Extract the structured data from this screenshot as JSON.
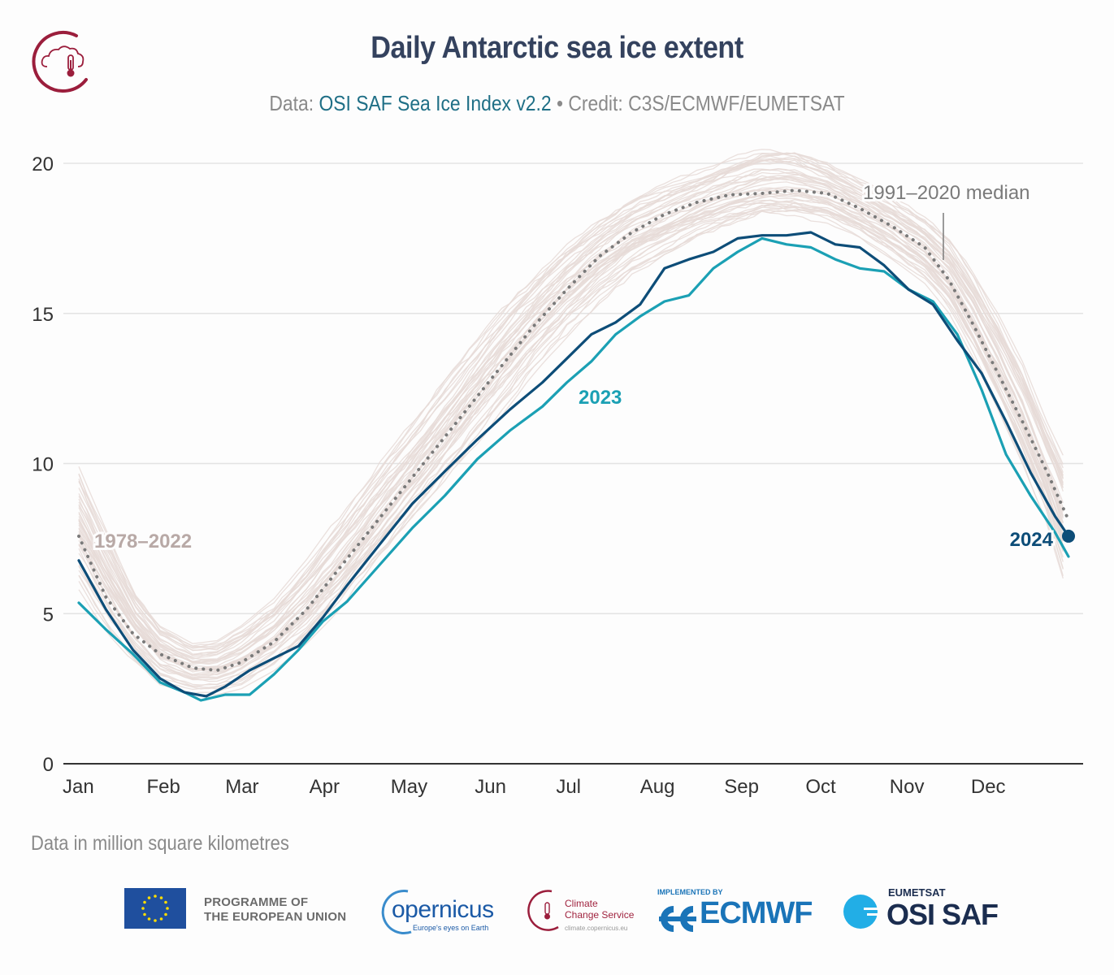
{
  "header": {
    "title": "Daily Antarctic sea ice extent",
    "subtitle_prefix": "Data: ",
    "subtitle_source": "OSI SAF Sea Ice Index v2.2",
    "subtitle_credit": " • Credit: C3S/ECMWF/EUMETSAT"
  },
  "footer": {
    "note": "Data in million square kilometres",
    "logos": {
      "eu_line1": "PROGRAMME OF",
      "eu_line2": "THE EUROPEAN UNION",
      "copernicus_word": "opernicus",
      "copernicus_tagline": "Europe's eyes on Earth",
      "c3s_line1": "Climate",
      "c3s_line2": "Change Service",
      "c3s_url": "climate.copernicus.eu",
      "ecmwf_implemented": "IMPLEMENTED BY",
      "ecmwf_word": "ECMWF",
      "osi_top": "EUMETSAT",
      "osi_word": "OSI SAF"
    }
  },
  "colors": {
    "title": "#34425e",
    "source_link": "#1f6f86",
    "series_2024": "#0d4d78",
    "series_2023": "#1ba0b4",
    "median": "#7a7a7a",
    "historical": "#e6dad7",
    "historical_label": "#b8a9a6",
    "logo_maroon": "#9b1e3c"
  },
  "chart_data": {
    "type": "line",
    "title": "Daily Antarctic sea ice extent",
    "xlabel": "",
    "ylabel": "",
    "unit": "million square kilometres",
    "xlim_days": [
      1,
      366
    ],
    "ylim": [
      0,
      20
    ],
    "yticks": [
      0,
      5,
      10,
      15,
      20
    ],
    "grid": true,
    "xticks": [
      {
        "label": "Jan",
        "day": 1
      },
      {
        "label": "Feb",
        "day": 32
      },
      {
        "label": "Mar",
        "day": 61
      },
      {
        "label": "Apr",
        "day": 92
      },
      {
        "label": "May",
        "day": 122
      },
      {
        "label": "Jun",
        "day": 153
      },
      {
        "label": "Jul",
        "day": 183
      },
      {
        "label": "Aug",
        "day": 214
      },
      {
        "label": "Sep",
        "day": 245
      },
      {
        "label": "Oct",
        "day": 275
      },
      {
        "label": "Nov",
        "day": 306
      },
      {
        "label": "Dec",
        "day": 336
      }
    ],
    "series": [
      {
        "name": "2024",
        "label": "2024",
        "color": "#0d4d78",
        "end_marker": true,
        "points": [
          [
            1,
            6.77
          ],
          [
            11,
            5.14
          ],
          [
            21,
            3.79
          ],
          [
            31,
            2.84
          ],
          [
            40,
            2.38
          ],
          [
            48,
            2.25
          ],
          [
            55,
            2.57
          ],
          [
            64,
            3.11
          ],
          [
            73,
            3.52
          ],
          [
            82,
            3.92
          ],
          [
            91,
            4.87
          ],
          [
            100,
            5.95
          ],
          [
            112,
            7.31
          ],
          [
            124,
            8.66
          ],
          [
            136,
            9.74
          ],
          [
            148,
            10.8
          ],
          [
            160,
            11.8
          ],
          [
            172,
            12.7
          ],
          [
            181,
            13.5
          ],
          [
            190,
            14.3
          ],
          [
            199,
            14.7
          ],
          [
            208,
            15.3
          ],
          [
            217,
            16.5
          ],
          [
            226,
            16.8
          ],
          [
            235,
            17.05
          ],
          [
            244,
            17.5
          ],
          [
            253,
            17.6
          ],
          [
            262,
            17.6
          ],
          [
            271,
            17.7
          ],
          [
            280,
            17.3
          ],
          [
            289,
            17.2
          ],
          [
            298,
            16.6
          ],
          [
            307,
            15.8
          ],
          [
            316,
            15.3
          ],
          [
            325,
            14.1
          ],
          [
            334,
            13.0
          ],
          [
            343,
            11.4
          ],
          [
            352,
            9.7
          ],
          [
            361,
            8.25
          ],
          [
            366,
            7.58
          ]
        ]
      },
      {
        "name": "2023",
        "label": "2023",
        "color": "#1ba0b4",
        "points": [
          [
            1,
            5.36
          ],
          [
            11,
            4.47
          ],
          [
            21,
            3.65
          ],
          [
            31,
            2.71
          ],
          [
            40,
            2.38
          ],
          [
            46,
            2.11
          ],
          [
            55,
            2.3
          ],
          [
            64,
            2.3
          ],
          [
            73,
            2.98
          ],
          [
            82,
            3.79
          ],
          [
            91,
            4.74
          ],
          [
            100,
            5.41
          ],
          [
            112,
            6.63
          ],
          [
            124,
            7.85
          ],
          [
            136,
            8.93
          ],
          [
            148,
            10.15
          ],
          [
            160,
            11.1
          ],
          [
            172,
            11.9
          ],
          [
            181,
            12.7
          ],
          [
            190,
            13.4
          ],
          [
            199,
            14.3
          ],
          [
            208,
            14.9
          ],
          [
            217,
            15.4
          ],
          [
            226,
            15.6
          ],
          [
            235,
            16.5
          ],
          [
            244,
            17.05
          ],
          [
            253,
            17.5
          ],
          [
            262,
            17.3
          ],
          [
            271,
            17.2
          ],
          [
            280,
            16.8
          ],
          [
            289,
            16.5
          ],
          [
            298,
            16.4
          ],
          [
            307,
            15.8
          ],
          [
            316,
            15.4
          ],
          [
            325,
            14.3
          ],
          [
            334,
            12.45
          ],
          [
            343,
            10.3
          ],
          [
            352,
            8.93
          ],
          [
            361,
            7.71
          ],
          [
            366,
            6.9
          ]
        ]
      },
      {
        "name": "1991–2020 median",
        "label": "1991–2020 median",
        "color": "#7a7a7a",
        "style": "dotted",
        "points": [
          [
            1,
            7.58
          ],
          [
            11,
            5.55
          ],
          [
            21,
            4.33
          ],
          [
            31,
            3.65
          ],
          [
            43,
            3.19
          ],
          [
            52,
            3.11
          ],
          [
            61,
            3.38
          ],
          [
            73,
            4.06
          ],
          [
            85,
            5.14
          ],
          [
            97,
            6.5
          ],
          [
            109,
            7.85
          ],
          [
            121,
            9.2
          ],
          [
            133,
            10.55
          ],
          [
            145,
            11.9
          ],
          [
            157,
            13.26
          ],
          [
            169,
            14.6
          ],
          [
            181,
            15.8
          ],
          [
            193,
            16.9
          ],
          [
            205,
            17.7
          ],
          [
            217,
            18.3
          ],
          [
            229,
            18.7
          ],
          [
            241,
            18.95
          ],
          [
            253,
            19.0
          ],
          [
            265,
            19.1
          ],
          [
            277,
            19.0
          ],
          [
            289,
            18.5
          ],
          [
            301,
            17.9
          ],
          [
            313,
            17.2
          ],
          [
            322,
            16.1
          ],
          [
            331,
            14.6
          ],
          [
            340,
            13.0
          ],
          [
            349,
            11.4
          ],
          [
            358,
            9.74
          ],
          [
            366,
            8.12
          ]
        ]
      }
    ],
    "historical_range": {
      "name": "1978–2022",
      "label": "1978–2022",
      "color": "#e6dad7",
      "description": "Individual years 1978–2022 shown as thin light lines; envelope below",
      "days": [
        1,
        11,
        21,
        31,
        43,
        52,
        61,
        73,
        85,
        97,
        109,
        121,
        133,
        145,
        157,
        169,
        181,
        193,
        205,
        217,
        229,
        241,
        253,
        265,
        277,
        289,
        301,
        313,
        322,
        331,
        340,
        349,
        358,
        366
      ],
      "low": [
        5.8,
        4.4,
        3.4,
        2.6,
        2.3,
        2.3,
        2.5,
        3.1,
        4.0,
        5.1,
        6.4,
        7.7,
        9.0,
        10.3,
        11.6,
        13.0,
        14.2,
        15.3,
        16.2,
        16.8,
        17.4,
        17.8,
        18.1,
        18.1,
        18.0,
        17.5,
        16.8,
        16.0,
        15.0,
        13.5,
        11.8,
        10.0,
        8.0,
        5.5
      ],
      "high": [
        9.9,
        7.8,
        5.8,
        4.6,
        4.0,
        4.1,
        4.6,
        5.5,
        6.8,
        8.3,
        9.8,
        11.2,
        12.6,
        14.0,
        15.3,
        16.4,
        17.4,
        18.2,
        18.9,
        19.4,
        19.8,
        20.3,
        20.7,
        20.7,
        20.2,
        19.6,
        19.0,
        18.3,
        17.6,
        16.4,
        15.0,
        13.4,
        11.4,
        9.9
      ]
    },
    "annotations": [
      {
        "text": "1978–2022",
        "target": "historical_range"
      },
      {
        "text": "2023",
        "target": "2023"
      },
      {
        "text": "2024",
        "target": "2024"
      },
      {
        "text": "1991–2020 median",
        "target": "1991–2020 median",
        "leader_line": true
      }
    ],
    "legend": "none (direct labels)"
  }
}
